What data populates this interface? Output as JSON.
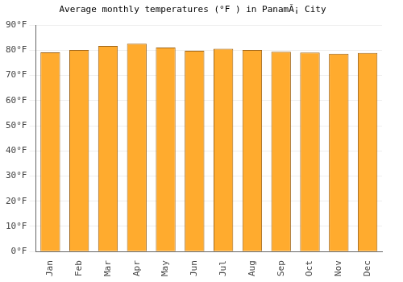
{
  "chart_data": {
    "type": "bar",
    "title": "Average monthly temperatures (°F ) in PanamÃ¡ City",
    "categories": [
      "Jan",
      "Feb",
      "Mar",
      "Apr",
      "May",
      "Jun",
      "Jul",
      "Aug",
      "Sep",
      "Oct",
      "Nov",
      "Dec"
    ],
    "values": [
      79.2,
      80.1,
      81.7,
      82.6,
      81.1,
      79.8,
      80.6,
      80.1,
      79.4,
      79.1,
      78.6,
      78.9
    ],
    "color": "#ffab2e",
    "ylim": [
      0,
      90
    ],
    "yticks": [
      {
        "value": 0,
        "label": "0°F"
      },
      {
        "value": 10,
        "label": "10°F"
      },
      {
        "value": 20,
        "label": "20°F"
      },
      {
        "value": 30,
        "label": "30°F"
      },
      {
        "value": 40,
        "label": "40°F"
      },
      {
        "value": 50,
        "label": "50°F"
      },
      {
        "value": 60,
        "label": "60°F"
      },
      {
        "value": 70,
        "label": "70°F"
      },
      {
        "value": 80,
        "label": "80°F"
      },
      {
        "value": 90,
        "label": "90°F"
      }
    ],
    "grid": true
  }
}
